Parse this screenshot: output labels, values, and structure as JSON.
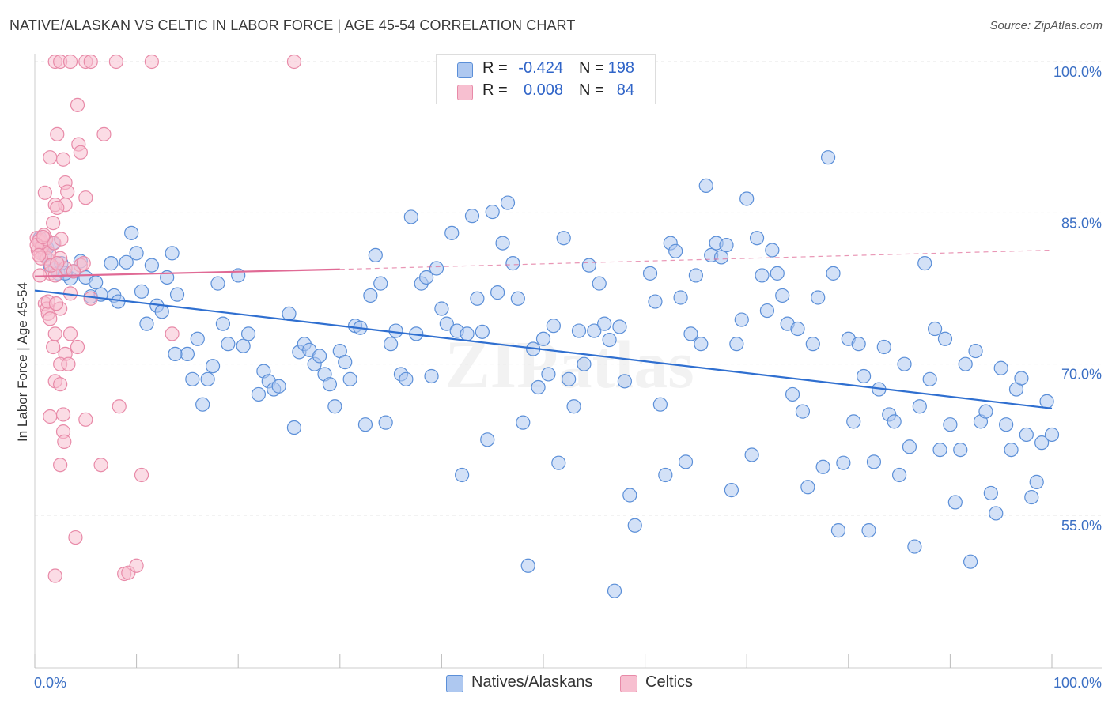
{
  "header": {
    "title": "NATIVE/ALASKAN VS CELTIC IN LABOR FORCE | AGE 45-54 CORRELATION CHART",
    "source": "Source: ZipAtlas.com"
  },
  "legend": {
    "rows": [
      {
        "r_label": "R =",
        "r_value": "-0.424",
        "n_label": "N =",
        "n_value": "198"
      },
      {
        "r_label": "R =",
        "r_value": "0.008",
        "n_label": "N =",
        "n_value": "84"
      }
    ],
    "bottom": [
      "Natives/Alaskans",
      "Celtics"
    ]
  },
  "watermark": "ZIPatlas",
  "colors": {
    "blue_fill": "#aec8f0",
    "blue_stroke": "#5b8fd8",
    "blue_line": "#2f6fd0",
    "pink_fill": "#f7bfd0",
    "pink_stroke": "#e88aa8",
    "pink_line": "#e06a95",
    "grid": "#e6e6e6",
    "tick_text": "#3b6fc4"
  },
  "chart_data": {
    "type": "scatter",
    "title": "NATIVE/ALASKAN VS CELTIC IN LABOR FORCE | AGE 45-54 CORRELATION CHART",
    "xlabel": "",
    "ylabel": "In Labor Force | Age 45-54",
    "xlim": [
      0,
      100
    ],
    "ylim": [
      40,
      101
    ],
    "x_tick_labels": [
      "0.0%",
      "100.0%"
    ],
    "y_ticks": [
      55,
      70,
      85,
      100
    ],
    "y_tick_labels": [
      "55.0%",
      "70.0%",
      "85.0%",
      "100.0%"
    ],
    "series": [
      {
        "name": "Natives/Alaskans",
        "r": -0.424,
        "n": 198,
        "trend": {
          "x": [
            0,
            100
          ],
          "y": [
            77.3,
            65.6
          ],
          "style": "solid"
        },
        "points": [
          [
            0.5,
            82.5
          ],
          [
            0.8,
            81.8
          ],
          [
            1.0,
            80.8
          ],
          [
            1.2,
            81.5
          ],
          [
            1.5,
            79.8
          ],
          [
            2.0,
            79.5
          ],
          [
            2.3,
            79.0
          ],
          [
            3.5,
            78.5
          ],
          [
            3.8,
            79.2
          ],
          [
            4.5,
            80.2
          ],
          [
            5.0,
            78.6
          ],
          [
            6.0,
            78.1
          ],
          [
            7.5,
            80.0
          ],
          [
            5.5,
            76.7
          ],
          [
            6.5,
            76.9
          ],
          [
            7.8,
            76.8
          ],
          [
            8.2,
            76.2
          ],
          [
            9.0,
            80.1
          ],
          [
            9.5,
            83.0
          ],
          [
            10.0,
            81.0
          ],
          [
            10.5,
            77.2
          ],
          [
            11.0,
            74.0
          ],
          [
            11.5,
            79.8
          ],
          [
            12.0,
            75.8
          ],
          [
            12.5,
            75.2
          ],
          [
            13.0,
            78.6
          ],
          [
            13.5,
            81.0
          ],
          [
            14.0,
            76.9
          ],
          [
            15.0,
            71.0
          ],
          [
            15.5,
            68.5
          ],
          [
            16.0,
            72.5
          ],
          [
            16.5,
            66.0
          ],
          [
            17.0,
            68.5
          ],
          [
            17.5,
            69.8
          ],
          [
            18.0,
            78.0
          ],
          [
            18.5,
            74.0
          ],
          [
            19.0,
            72.0
          ],
          [
            20.0,
            78.8
          ],
          [
            20.5,
            71.8
          ],
          [
            21.0,
            73.0
          ],
          [
            22.0,
            67.0
          ],
          [
            22.5,
            69.3
          ],
          [
            23.0,
            68.3
          ],
          [
            23.5,
            67.5
          ],
          [
            24.0,
            67.8
          ],
          [
            25.0,
            75.0
          ],
          [
            25.5,
            63.7
          ],
          [
            26.0,
            71.2
          ],
          [
            26.5,
            72.0
          ],
          [
            27.0,
            71.4
          ],
          [
            27.5,
            70.0
          ],
          [
            28.0,
            70.8
          ],
          [
            28.5,
            69.0
          ],
          [
            29.0,
            68.0
          ],
          [
            29.5,
            65.8
          ],
          [
            30.0,
            71.3
          ],
          [
            30.5,
            70.2
          ],
          [
            31.0,
            68.5
          ],
          [
            31.5,
            73.8
          ],
          [
            32.0,
            73.6
          ],
          [
            32.5,
            64.0
          ],
          [
            33.0,
            76.8
          ],
          [
            33.5,
            80.8
          ],
          [
            34.0,
            78.0
          ],
          [
            34.5,
            64.2
          ],
          [
            35.0,
            72.0
          ],
          [
            35.5,
            73.3
          ],
          [
            36.0,
            69.0
          ],
          [
            36.5,
            68.5
          ],
          [
            37.0,
            84.6
          ],
          [
            37.5,
            73.0
          ],
          [
            38.0,
            78.0
          ],
          [
            38.5,
            78.6
          ],
          [
            39.0,
            68.8
          ],
          [
            39.5,
            79.5
          ],
          [
            40.0,
            75.5
          ],
          [
            40.5,
            74.0
          ],
          [
            41.0,
            83.0
          ],
          [
            41.5,
            73.3
          ],
          [
            42.0,
            59.0
          ],
          [
            42.5,
            73.0
          ],
          [
            43.0,
            84.7
          ],
          [
            43.5,
            76.5
          ],
          [
            44.0,
            73.2
          ],
          [
            45.0,
            85.1
          ],
          [
            45.5,
            77.1
          ],
          [
            46.0,
            82.0
          ],
          [
            46.5,
            86.0
          ],
          [
            47.0,
            80.0
          ],
          [
            47.5,
            76.5
          ],
          [
            48.0,
            64.2
          ],
          [
            48.5,
            50.0
          ],
          [
            49.0,
            71.5
          ],
          [
            49.5,
            67.7
          ],
          [
            50.0,
            72.5
          ],
          [
            50.5,
            69.0
          ],
          [
            51.0,
            73.8
          ],
          [
            51.5,
            60.2
          ],
          [
            52.0,
            82.5
          ],
          [
            52.5,
            68.5
          ],
          [
            53.0,
            65.8
          ],
          [
            53.5,
            73.3
          ],
          [
            54.0,
            70.0
          ],
          [
            54.5,
            79.8
          ],
          [
            55.0,
            73.3
          ],
          [
            55.5,
            78.0
          ],
          [
            56.0,
            74.0
          ],
          [
            56.5,
            72.4
          ],
          [
            57.0,
            47.5
          ],
          [
            57.5,
            73.7
          ],
          [
            58.0,
            68.3
          ],
          [
            58.5,
            57.0
          ],
          [
            59.0,
            54.0
          ],
          [
            60.5,
            79.0
          ],
          [
            61.0,
            76.2
          ],
          [
            61.5,
            66.0
          ],
          [
            62.0,
            59.0
          ],
          [
            62.5,
            82.0
          ],
          [
            63.0,
            81.2
          ],
          [
            63.5,
            76.6
          ],
          [
            64.0,
            60.3
          ],
          [
            64.5,
            73.0
          ],
          [
            65.0,
            78.8
          ],
          [
            65.5,
            72.0
          ],
          [
            66.0,
            87.7
          ],
          [
            66.5,
            80.8
          ],
          [
            67.0,
            82.0
          ],
          [
            67.5,
            80.6
          ],
          [
            68.0,
            81.8
          ],
          [
            68.5,
            57.5
          ],
          [
            69.0,
            72.0
          ],
          [
            69.5,
            74.4
          ],
          [
            70.0,
            86.4
          ],
          [
            70.5,
            61.0
          ],
          [
            71.0,
            82.5
          ],
          [
            71.5,
            78.8
          ],
          [
            72.0,
            75.3
          ],
          [
            72.5,
            81.3
          ],
          [
            73.0,
            79.0
          ],
          [
            73.5,
            76.8
          ],
          [
            74.0,
            74.0
          ],
          [
            74.5,
            67.0
          ],
          [
            75.0,
            73.5
          ],
          [
            75.5,
            65.3
          ],
          [
            76.0,
            57.8
          ],
          [
            76.5,
            72.0
          ],
          [
            77.0,
            76.6
          ],
          [
            77.5,
            59.8
          ],
          [
            78.0,
            90.5
          ],
          [
            78.5,
            79.0
          ],
          [
            79.0,
            53.5
          ],
          [
            79.5,
            60.2
          ],
          [
            80.0,
            72.5
          ],
          [
            80.5,
            64.3
          ],
          [
            81.0,
            72.0
          ],
          [
            81.5,
            68.8
          ],
          [
            82.0,
            53.5
          ],
          [
            82.5,
            60.3
          ],
          [
            83.0,
            67.5
          ],
          [
            83.5,
            71.7
          ],
          [
            84.0,
            65.0
          ],
          [
            84.5,
            64.3
          ],
          [
            85.0,
            59.0
          ],
          [
            85.5,
            70.0
          ],
          [
            86.0,
            61.8
          ],
          [
            86.5,
            51.9
          ],
          [
            87.0,
            65.8
          ],
          [
            87.5,
            80.0
          ],
          [
            88.0,
            68.5
          ],
          [
            88.5,
            73.5
          ],
          [
            89.0,
            61.5
          ],
          [
            89.5,
            72.5
          ],
          [
            90.0,
            64.0
          ],
          [
            90.5,
            56.3
          ],
          [
            91.0,
            61.5
          ],
          [
            91.5,
            70.0
          ],
          [
            92.0,
            50.4
          ],
          [
            92.5,
            71.3
          ],
          [
            93.0,
            64.3
          ],
          [
            93.5,
            65.3
          ],
          [
            94.0,
            57.2
          ],
          [
            94.5,
            55.2
          ],
          [
            95.0,
            69.6
          ],
          [
            95.5,
            64.0
          ],
          [
            96.0,
            61.5
          ],
          [
            96.5,
            67.5
          ],
          [
            97.0,
            68.6
          ],
          [
            97.5,
            63.0
          ],
          [
            98.0,
            56.8
          ],
          [
            98.5,
            58.3
          ],
          [
            99.0,
            62.2
          ],
          [
            99.5,
            66.3
          ],
          [
            100.0,
            63.0
          ],
          [
            1.8,
            82.0
          ],
          [
            3.0,
            79.0
          ],
          [
            2.6,
            80.0
          ],
          [
            13.8,
            71.0
          ],
          [
            44.5,
            62.5
          ]
        ]
      },
      {
        "name": "Celtics",
        "r": 0.008,
        "n": 84,
        "trend": {
          "x": [
            0,
            30
          ],
          "y": [
            78.7,
            79.4
          ],
          "style": "solid",
          "extended": {
            "x": [
              30,
              100
            ],
            "y": [
              79.4,
              81.3
            ],
            "style": "dashed"
          }
        },
        "points": [
          [
            2.0,
            100.0
          ],
          [
            2.5,
            100.0
          ],
          [
            3.5,
            100.0
          ],
          [
            5.0,
            100.0
          ],
          [
            5.5,
            100.0
          ],
          [
            8.0,
            100.0
          ],
          [
            11.5,
            100.0
          ],
          [
            25.5,
            100.0
          ],
          [
            4.2,
            95.7
          ],
          [
            2.2,
            92.8
          ],
          [
            4.3,
            91.8
          ],
          [
            4.5,
            91.0
          ],
          [
            6.8,
            92.8
          ],
          [
            1.5,
            90.5
          ],
          [
            2.8,
            90.3
          ],
          [
            3.0,
            88.0
          ],
          [
            3.2,
            87.1
          ],
          [
            1.0,
            87.0
          ],
          [
            5.0,
            86.5
          ],
          [
            2.0,
            85.8
          ],
          [
            3.0,
            85.8
          ],
          [
            2.2,
            85.5
          ],
          [
            1.8,
            84.0
          ],
          [
            0.2,
            82.5
          ],
          [
            0.5,
            82.3
          ],
          [
            0.8,
            82.0
          ],
          [
            1.0,
            81.5
          ],
          [
            0.3,
            81.3
          ],
          [
            0.6,
            81.0
          ],
          [
            1.2,
            80.5
          ],
          [
            2.5,
            80.5
          ],
          [
            3.0,
            79.5
          ],
          [
            4.5,
            79.8
          ],
          [
            1.5,
            79.0
          ],
          [
            0.5,
            78.8
          ],
          [
            2.0,
            78.8
          ],
          [
            3.5,
            77.0
          ],
          [
            5.5,
            76.5
          ],
          [
            1.0,
            76.0
          ],
          [
            1.2,
            75.5
          ],
          [
            2.5,
            75.5
          ],
          [
            1.3,
            75.0
          ],
          [
            1.5,
            74.5
          ],
          [
            2.0,
            73.0
          ],
          [
            3.5,
            73.0
          ],
          [
            13.5,
            73.0
          ],
          [
            1.8,
            71.7
          ],
          [
            4.2,
            71.7
          ],
          [
            3.0,
            71.0
          ],
          [
            2.5,
            70.0
          ],
          [
            3.3,
            70.0
          ],
          [
            2.0,
            68.3
          ],
          [
            2.5,
            68.0
          ],
          [
            8.3,
            65.8
          ],
          [
            1.5,
            64.8
          ],
          [
            2.8,
            65.0
          ],
          [
            5.0,
            64.5
          ],
          [
            2.8,
            63.3
          ],
          [
            2.9,
            62.3
          ],
          [
            2.5,
            60.0
          ],
          [
            6.5,
            60.0
          ],
          [
            10.5,
            59.0
          ],
          [
            4.0,
            52.8
          ],
          [
            2.0,
            49.0
          ],
          [
            8.8,
            49.2
          ],
          [
            9.2,
            49.3
          ],
          [
            10.0,
            50.0
          ],
          [
            0.4,
            82.2
          ],
          [
            0.7,
            81.6
          ],
          [
            1.1,
            82.4
          ],
          [
            1.4,
            81.0
          ],
          [
            0.9,
            82.8
          ],
          [
            0.6,
            80.5
          ],
          [
            1.6,
            79.8
          ],
          [
            2.2,
            80.0
          ],
          [
            3.8,
            79.2
          ],
          [
            4.8,
            80.0
          ],
          [
            0.2,
            81.8
          ],
          [
            1.9,
            82.0
          ],
          [
            2.6,
            82.4
          ],
          [
            0.4,
            80.8
          ],
          [
            1.3,
            76.2
          ],
          [
            2.1,
            76.0
          ],
          [
            0.8,
            82.6
          ]
        ]
      }
    ]
  }
}
